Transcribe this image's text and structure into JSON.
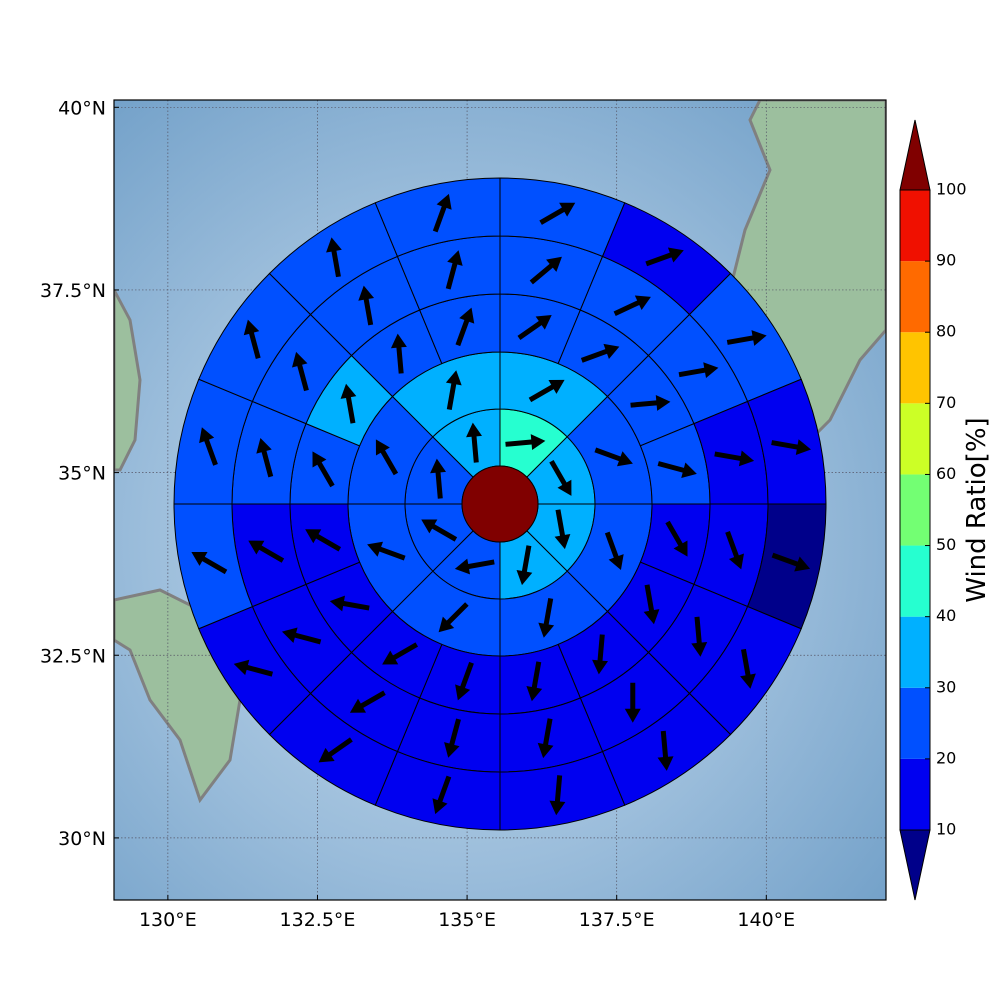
{
  "chart_data": {
    "type": "polar-grid",
    "xlim": [
      129.1,
      142
    ],
    "ylim": [
      29.15,
      40.1
    ],
    "xticks": [
      {
        "value": 130,
        "label": "130°E"
      },
      {
        "value": 132.5,
        "label": "132.5°E"
      },
      {
        "value": 135,
        "label": "135°E"
      },
      {
        "value": 137.5,
        "label": "137.5°E"
      },
      {
        "value": 140,
        "label": "140°E"
      }
    ],
    "yticks": [
      {
        "value": 30,
        "label": "30°N"
      },
      {
        "value": 32.5,
        "label": "32.5°N"
      },
      {
        "value": 35,
        "label": "35°N"
      },
      {
        "value": 37.5,
        "label": "37.5°N"
      },
      {
        "value": 40,
        "label": "40°N"
      }
    ],
    "grid": true,
    "colorbar": {
      "label": "Wind Ratio[%]",
      "levels": [
        10,
        20,
        30,
        40,
        50,
        60,
        70,
        80,
        90,
        100
      ],
      "colors": [
        "#0000f0",
        "#0050ff",
        "#00b0ff",
        "#26ffd0",
        "#73ff73",
        "#ccff26",
        "#ffc400",
        "#ff6a00",
        "#f01000"
      ],
      "under_color": "#00008a",
      "over_color": "#800000"
    },
    "center_value": 105,
    "rings": [
      {
        "values": [
          45,
          35,
          35,
          35,
          25,
          25,
          25,
          35
        ],
        "directions": [
          85,
          150,
          170,
          190,
          260,
          300,
          355,
          355
        ]
      },
      {
        "values": [
          35,
          25,
          25,
          25,
          25,
          25,
          25,
          35
        ],
        "directions": [
          60,
          110,
          160,
          190,
          225,
          290,
          330,
          10
        ]
      },
      {
        "values": [
          25,
          25,
          25,
          25,
          15,
          15,
          15,
          15,
          15,
          15,
          15,
          15,
          25,
          35,
          25,
          25
        ],
        "directions": [
          55,
          70,
          85,
          105,
          150,
          170,
          185,
          190,
          200,
          240,
          280,
          300,
          330,
          350,
          355,
          20
        ]
      },
      {
        "values": [
          25,
          25,
          25,
          15,
          15,
          15,
          15,
          15,
          15,
          15,
          15,
          15,
          25,
          25,
          25,
          25
        ],
        "directions": [
          50,
          65,
          80,
          100,
          160,
          175,
          180,
          190,
          195,
          240,
          285,
          300,
          345,
          345,
          350,
          15
        ]
      },
      {
        "values": [
          25,
          15,
          25,
          15,
          5,
          15,
          15,
          15,
          15,
          15,
          15,
          25,
          25,
          25,
          25,
          25
        ],
        "directions": [
          60,
          70,
          80,
          100,
          110,
          170,
          175,
          185,
          200,
          235,
          285,
          300,
          340,
          345,
          350,
          20
        ]
      }
    ]
  }
}
